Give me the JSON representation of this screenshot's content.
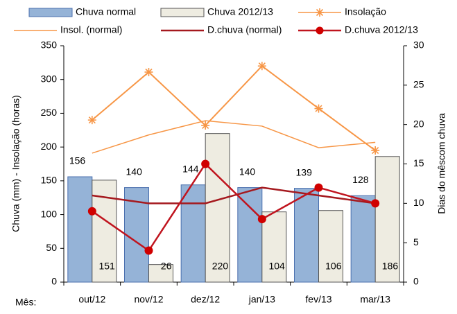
{
  "chart_data": {
    "type": "bar",
    "categories": [
      "out/12",
      "nov/12",
      "dez/12",
      "jan/13",
      "fev/13",
      "mar/13"
    ],
    "xlabel": "Mês:",
    "ylabel": "Chuva (mm)  - Insolação (horas)",
    "y2label": "Dias do mêscom chuva",
    "ylim": [
      0,
      350
    ],
    "yticks": [
      0,
      50,
      100,
      150,
      200,
      250,
      300,
      350
    ],
    "y2lim": [
      0,
      30
    ],
    "y2ticks": [
      0,
      5,
      10,
      15,
      20,
      25,
      30
    ],
    "series": [
      {
        "name": "Chuva normal",
        "type": "bar",
        "color": "#95b3d7",
        "values": [
          156,
          140,
          144,
          140,
          139,
          128
        ],
        "label_position": "above"
      },
      {
        "name": "Chuva 2012/13",
        "type": "bar",
        "color": "#eeece1",
        "values": [
          151,
          26,
          220,
          104,
          106,
          186
        ],
        "label_position": "inside-bottom"
      },
      {
        "name": "Insolação",
        "type": "line",
        "color": "#f79646",
        "marker": "asterisk",
        "values": [
          240,
          311,
          232,
          320,
          257,
          195
        ]
      },
      {
        "name": "Insol. (normal)",
        "type": "line",
        "color": "#f79646",
        "values": [
          191,
          218,
          239,
          231,
          199,
          207
        ]
      },
      {
        "name": "D.chuva (normal)",
        "type": "line",
        "axis": "y2",
        "color": "#a5191e",
        "values": [
          11,
          10,
          10,
          12,
          11,
          10
        ]
      },
      {
        "name": "D.chuva 2012/13",
        "type": "line",
        "axis": "y2",
        "color": "#c0141e",
        "marker": "circle",
        "values": [
          9,
          4,
          15,
          8,
          12,
          10
        ]
      }
    ]
  }
}
